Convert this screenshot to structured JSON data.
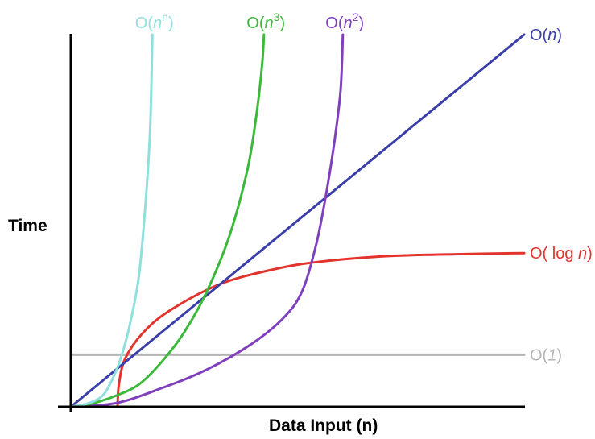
{
  "chart_data": {
    "type": "line",
    "title": "",
    "xlabel": "Data Input (n)",
    "ylabel": "Time",
    "grid": false,
    "ticks": "none",
    "x_range": [
      0,
      100
    ],
    "y_range": [
      0,
      100
    ],
    "series": [
      {
        "name": "O(n^n)",
        "label_parts": [
          "O(",
          "n",
          "n",
          ")"
        ],
        "color": "#8fe0dc",
        "label_position": "top",
        "points": [
          [
            0,
            0
          ],
          [
            4,
            1
          ],
          [
            7,
            3
          ],
          [
            9,
            7
          ],
          [
            11,
            13
          ],
          [
            13,
            22
          ],
          [
            15,
            35
          ],
          [
            16.5,
            55
          ],
          [
            17.5,
            75
          ],
          [
            18,
            100
          ]
        ]
      },
      {
        "name": "O(n^3)",
        "label_parts": [
          "O(",
          "n",
          "3",
          ")"
        ],
        "color": "#3cb83a",
        "label_position": "top",
        "points": [
          [
            0,
            0
          ],
          [
            5,
            1
          ],
          [
            10,
            3
          ],
          [
            15,
            6
          ],
          [
            20,
            12
          ],
          [
            25,
            20
          ],
          [
            30,
            31
          ],
          [
            35,
            46
          ],
          [
            39,
            64
          ],
          [
            41,
            79
          ],
          [
            42.2,
            92
          ],
          [
            42.6,
            100
          ]
        ]
      },
      {
        "name": "O(n^2)",
        "label_parts": [
          "O(",
          "n",
          "2",
          ")"
        ],
        "color": "#8040bc",
        "label_position": "top",
        "points": [
          [
            0,
            0
          ],
          [
            10,
            1
          ],
          [
            20,
            5
          ],
          [
            30,
            10
          ],
          [
            40,
            17
          ],
          [
            47,
            24
          ],
          [
            51,
            31
          ],
          [
            54,
            43
          ],
          [
            56,
            55
          ],
          [
            58,
            70
          ],
          [
            59.5,
            85
          ],
          [
            60,
            100
          ]
        ]
      },
      {
        "name": "O(n)",
        "label_parts": [
          "O(",
          "n",
          "",
          ")"
        ],
        "color": "#3a3fa8",
        "label_position": "right",
        "points": [
          [
            0,
            0
          ],
          [
            100,
            100
          ]
        ]
      },
      {
        "name": "O(log n)",
        "label_parts": [
          "O( log ",
          "n",
          "",
          ")"
        ],
        "color": "#e2332c",
        "label_position": "right",
        "points": [
          [
            10.3,
            0
          ],
          [
            10.6,
            6
          ],
          [
            12,
            13
          ],
          [
            16,
            20
          ],
          [
            22,
            26
          ],
          [
            33,
            33
          ],
          [
            45,
            37
          ],
          [
            55,
            39
          ],
          [
            70,
            40.5
          ],
          [
            85,
            41
          ],
          [
            100,
            41.3
          ]
        ]
      },
      {
        "name": "O(1)",
        "label_parts": [
          "O(",
          "1",
          "",
          ")"
        ],
        "color": "#b4b4b4",
        "label_position": "right",
        "points": [
          [
            0,
            14
          ],
          [
            100,
            14
          ]
        ]
      }
    ]
  }
}
